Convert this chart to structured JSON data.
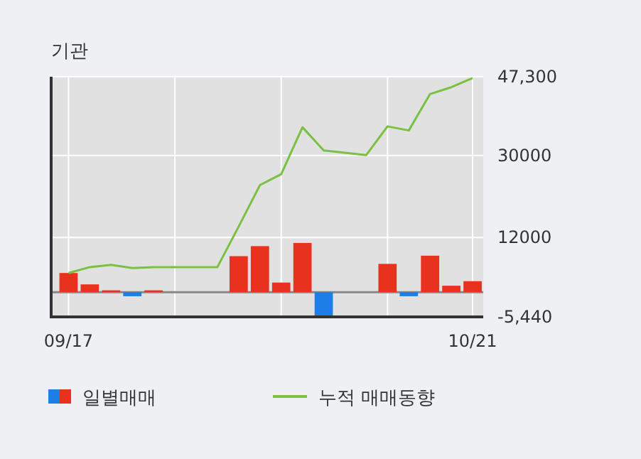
{
  "chart_data": {
    "type": "bar",
    "title": "기관",
    "categories": [
      "09/17",
      null,
      null,
      null,
      null,
      null,
      null,
      null,
      null,
      null,
      null,
      null,
      null,
      null,
      null,
      null,
      null,
      null,
      null,
      "10/21"
    ],
    "series": [
      {
        "name": "일별매매",
        "colors": [
          "#e8321e",
          "#e8321e",
          "#e8321e",
          "#1e7ee8",
          "#e8321e",
          "#e8321e",
          "#e8321e",
          "#e8321e",
          "#e8321e",
          "#e8321e",
          "#e8321e",
          "#e8321e",
          "#1e7ee8",
          "#e8321e",
          "#e8321e",
          "#e8321e",
          "#1e7ee8",
          "#e8321e",
          "#e8321e",
          "#e8321e"
        ],
        "values": [
          4200,
          1700,
          400,
          -900,
          400,
          0,
          0,
          0,
          7900,
          10100,
          2100,
          10800,
          -5400,
          0,
          0,
          6200,
          -900,
          8000,
          1400,
          2400
        ]
      },
      {
        "name": "누적 매매동향",
        "type": "line",
        "color": "#7ac143",
        "values": [
          4200,
          5500,
          6000,
          5300,
          5500,
          5500,
          5500,
          5500,
          14400,
          23500,
          25900,
          36200,
          31100,
          30600,
          30100,
          36400,
          35500,
          43500,
          45000,
          47000
        ]
      }
    ],
    "ylim": [
      -5440,
      47300
    ],
    "yticks": [
      {
        "value": 47300,
        "label": "47,300"
      },
      30000,
      12000,
      {
        "value": -5440,
        "label": "-5,440"
      }
    ],
    "grid": true,
    "legend": "bottom"
  }
}
